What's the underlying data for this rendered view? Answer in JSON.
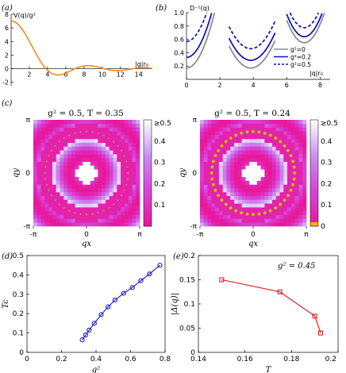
{
  "colors": {
    "orange": "#f08c1e",
    "gray": "#8c8c8c",
    "blue": "#1414c8",
    "magenta": "#e8179c",
    "red": "#e01010",
    "ring_dot": "#c8c800"
  },
  "panel_labels": {
    "a": "(a)",
    "b": "(b)",
    "c": "(c)",
    "d": "(d)",
    "e": "(e)"
  },
  "chart_data": [
    {
      "id": "a",
      "type": "line",
      "ylabel": "V(q)/g²",
      "xlabel": "|q|r₀",
      "xlim": [
        0,
        15.5
      ],
      "ylim": [
        -2.5,
        8
      ],
      "xticks": [
        2,
        4,
        6,
        8,
        10,
        12,
        14
      ],
      "yticks": [
        -2,
        0,
        2,
        4,
        6,
        8
      ],
      "xtick_labels": [
        "2",
        "4",
        "6",
        "8",
        "10",
        "12",
        "14"
      ],
      "ytick_labels": [
        "-2",
        "0",
        "2",
        "4",
        "6",
        "8"
      ],
      "series": [
        {
          "formula": "bessel",
          "amplitude": 2,
          "color": "orange"
        }
      ]
    },
    {
      "id": "b",
      "type": "line",
      "ylabel": "D⁻¹(q)",
      "xlabel": "|q|r₀",
      "xlim": [
        0,
        8.6
      ],
      "ylim": [
        0,
        1.0
      ],
      "xticks": [
        0,
        2,
        4,
        6,
        8
      ],
      "yticks": [
        0.2,
        0.4,
        0.6,
        0.8,
        1.0
      ],
      "xtick_labels": [
        "0",
        "2",
        "4",
        "6",
        "8"
      ],
      "ytick_labels": [
        "0.2",
        "0.4",
        "0.6",
        "0.8",
        "1.0"
      ],
      "series": [
        {
          "name": "g²=0",
          "g2": 0,
          "color": "gray",
          "dash": false
        },
        {
          "name": "g²=0.2",
          "g2": 0.2,
          "color": "blue",
          "dash": false
        },
        {
          "name": "g²=0.5",
          "g2": 0.5,
          "color": "blue",
          "dash": true
        }
      ]
    },
    {
      "id": "c1",
      "type": "heatmap",
      "title": "g² = 0.5,  T = 0.35",
      "xlabel": "qx",
      "ylabel": "qy",
      "x_tick_labels": [
        "-π",
        "0",
        "π"
      ],
      "y_tick_labels": [
        "-π",
        "0",
        "π"
      ],
      "grid": 28,
      "ring_radius": 2.45,
      "ring_strength": 0.35
    },
    {
      "id": "c2",
      "type": "heatmap",
      "title": "g² = 0.5,  T = 0.24",
      "xlabel": "qx",
      "ylabel": "qy",
      "x_tick_labels": [
        "-π",
        "0",
        "π"
      ],
      "y_tick_labels": [
        "-π",
        "0",
        "π"
      ],
      "grid": 28,
      "ring_radius": 2.45,
      "ring_strength": 1.0,
      "colorbar": {
        "labels": [
          "≥0.5",
          "0.4",
          "0.3",
          "0.2",
          "0.1",
          "0"
        ]
      }
    },
    {
      "id": "c1_colorbar",
      "type": "colorbar",
      "labels": [
        "≥0.5",
        "0.4",
        "0.3",
        "0.2",
        "0.1"
      ]
    },
    {
      "id": "d",
      "type": "line",
      "xlabel": "g²",
      "ylabel": "Tc",
      "xlim": [
        0,
        0.8
      ],
      "ylim": [
        0,
        0.5
      ],
      "xticks": [
        0,
        0.2,
        0.4,
        0.6,
        0.8
      ],
      "yticks": [
        0,
        0.1,
        0.2,
        0.3,
        0.4,
        0.5
      ],
      "xtick_labels": [
        "0",
        "0.2",
        "0.4",
        "0.6",
        "0.8"
      ],
      "ytick_labels": [
        "0",
        "0.1",
        "0.2",
        "0.3",
        "0.4",
        "0.5"
      ],
      "x": [
        0.32,
        0.34,
        0.36,
        0.39,
        0.43,
        0.47,
        0.51,
        0.56,
        0.61,
        0.66,
        0.71,
        0.77
      ],
      "y": [
        0.065,
        0.09,
        0.115,
        0.15,
        0.195,
        0.235,
        0.27,
        0.305,
        0.335,
        0.37,
        0.405,
        0.45
      ],
      "marker": "circle",
      "color": "blue"
    },
    {
      "id": "e",
      "type": "line",
      "xlabel": "T",
      "ylabel": "|Δ(q)|",
      "annotation": "g² = 0.45",
      "xlim": [
        0.14,
        0.2
      ],
      "ylim": [
        0,
        0.2
      ],
      "xticks": [
        0.14,
        0.16,
        0.18,
        0.2
      ],
      "yticks": [
        0,
        0.05,
        0.1,
        0.15,
        0.2
      ],
      "xtick_labels": [
        "0.14",
        "0.16",
        "0.18",
        "0.2"
      ],
      "ytick_labels": [
        "0",
        "0.05",
        "0.1",
        "0.15",
        "0.2"
      ],
      "x": [
        0.15,
        0.175,
        0.19,
        0.1925
      ],
      "y": [
        0.15,
        0.125,
        0.075,
        0.04
      ],
      "marker": "square",
      "color": "red"
    }
  ]
}
